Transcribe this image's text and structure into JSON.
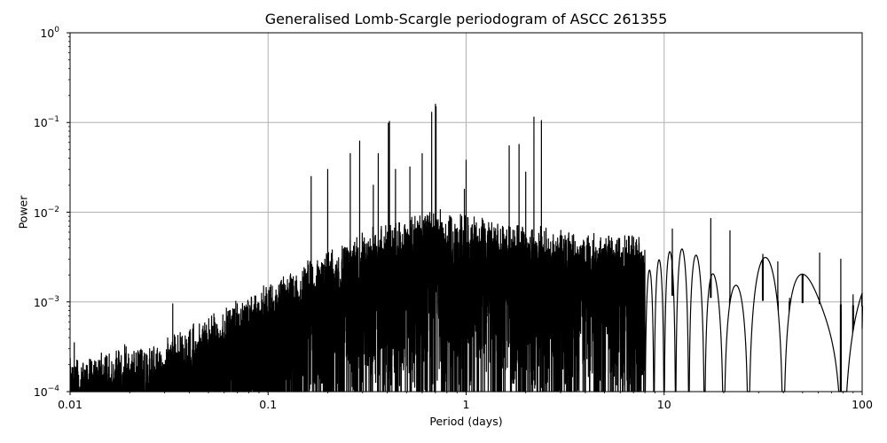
{
  "chart_data": {
    "type": "line",
    "title": "Generalised Lomb-Scargle periodogram of ASCC 261355",
    "xlabel": "Period (days)",
    "ylabel": "Power",
    "xscale": "log",
    "yscale": "log",
    "xlim": [
      0.01,
      100
    ],
    "ylim": [
      0.0001,
      1
    ],
    "grid": true,
    "legend": null,
    "line_color": "#000000",
    "grid_color": "#b0b0b0",
    "x_ticks": [
      {
        "value": 0.01,
        "label": "0.01"
      },
      {
        "value": 0.1,
        "label": "0.1"
      },
      {
        "value": 1,
        "label": "1"
      },
      {
        "value": 10,
        "label": "10"
      },
      {
        "value": 100,
        "label": "100"
      }
    ],
    "y_ticks": [
      {
        "value": 1,
        "base": "10",
        "exp": "0"
      },
      {
        "value": 0.1,
        "base": "10",
        "exp": "−1"
      },
      {
        "value": 0.01,
        "base": "10",
        "exp": "−2"
      },
      {
        "value": 0.001,
        "base": "10",
        "exp": "−3"
      },
      {
        "value": 0.0001,
        "base": "10",
        "exp": "−4"
      }
    ],
    "envelope": {
      "description": "approximate upper envelope of the noise floor (period, power)",
      "points": [
        [
          0.01,
          0.00018
        ],
        [
          0.03,
          0.0003
        ],
        [
          0.1,
          0.0012
        ],
        [
          0.2,
          0.003
        ],
        [
          0.4,
          0.006
        ],
        [
          0.7,
          0.008
        ],
        [
          1.5,
          0.006
        ],
        [
          3,
          0.005
        ],
        [
          10,
          0.004
        ],
        [
          100,
          0.003
        ]
      ]
    },
    "notable_peaks": [
      {
        "period": 0.0105,
        "power": 0.00035
      },
      {
        "period": 0.033,
        "power": 0.00095
      },
      {
        "period": 0.165,
        "power": 0.025
      },
      {
        "period": 0.2,
        "power": 0.03
      },
      {
        "period": 0.26,
        "power": 0.045
      },
      {
        "period": 0.29,
        "power": 0.062
      },
      {
        "period": 0.34,
        "power": 0.02
      },
      {
        "period": 0.36,
        "power": 0.045
      },
      {
        "period": 0.405,
        "power": 0.098
      },
      {
        "period": 0.41,
        "power": 0.103
      },
      {
        "period": 0.44,
        "power": 0.03
      },
      {
        "period": 0.52,
        "power": 0.032
      },
      {
        "period": 0.6,
        "power": 0.045
      },
      {
        "period": 0.67,
        "power": 0.13
      },
      {
        "period": 0.7,
        "power": 0.16
      },
      {
        "period": 0.705,
        "power": 0.15
      },
      {
        "period": 0.98,
        "power": 0.018
      },
      {
        "period": 1.0,
        "power": 0.038
      },
      {
        "period": 1.65,
        "power": 0.055
      },
      {
        "period": 1.85,
        "power": 0.057
      },
      {
        "period": 2.0,
        "power": 0.028
      },
      {
        "period": 2.2,
        "power": 0.115
      },
      {
        "period": 2.4,
        "power": 0.105
      },
      {
        "period": 11.0,
        "power": 0.0065
      },
      {
        "period": 17.2,
        "power": 0.0085
      },
      {
        "period": 21.5,
        "power": 0.0062
      },
      {
        "period": 31.5,
        "power": 0.0034
      },
      {
        "period": 37.5,
        "power": 0.0028
      },
      {
        "period": 43,
        "power": 0.0011
      },
      {
        "period": 50,
        "power": 0.0011
      },
      {
        "period": 61,
        "power": 0.0035
      },
      {
        "period": 78,
        "power": 0.003
      },
      {
        "period": 90,
        "power": 0.0012
      },
      {
        "period": 100,
        "power": 0.0005
      }
    ]
  }
}
